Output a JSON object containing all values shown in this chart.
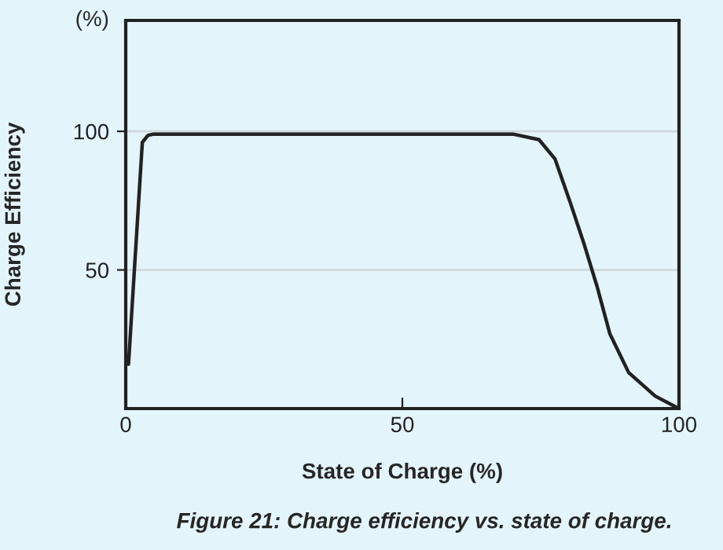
{
  "chart_data": {
    "type": "line",
    "xlabel": "State of Charge (%)",
    "ylabel": "Charge Efficiency",
    "annotations": [
      "(%)",
      "Figure 21: Charge efficiency vs. state of charge."
    ],
    "x": [
      0.5,
      3,
      4,
      5,
      10,
      30,
      50,
      70,
      74.7,
      77.6,
      80.4,
      82.9,
      85.2,
      87.5,
      90.9,
      95.7,
      100
    ],
    "series": [
      {
        "color": "#222222",
        "values": [
          16,
          96,
          98.5,
          99,
          99,
          99,
          99,
          99,
          97,
          90,
          74,
          59,
          44,
          27,
          13,
          4.5,
          0
        ]
      }
    ],
    "xlim": [
      0,
      100
    ],
    "ylim": [
      0,
      140
    ],
    "xticks": [
      0,
      50,
      100
    ],
    "yticks": [
      50,
      100
    ],
    "grid": "y",
    "legend": false,
    "marker": "none",
    "line_style": "solid"
  }
}
